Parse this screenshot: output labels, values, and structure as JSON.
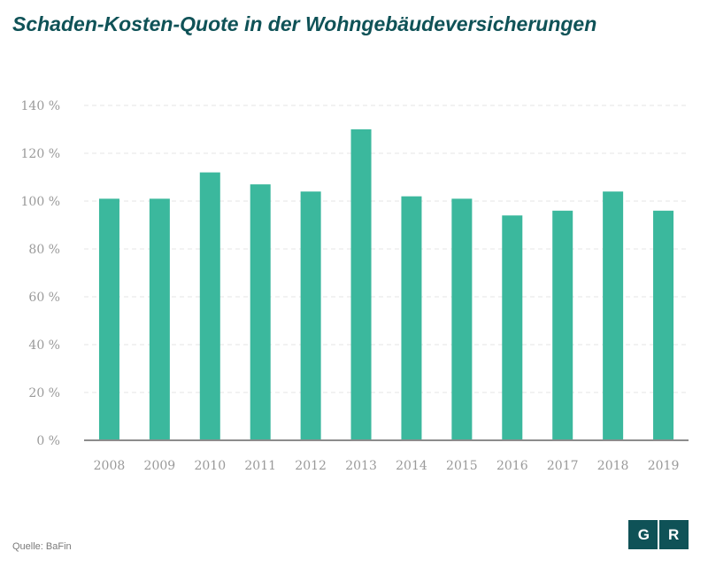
{
  "title": "Schaden-Kosten-Quote in der Wohngebäudeversicherungen",
  "source": "Quelle: BaFin",
  "logo": {
    "left_letter": "G",
    "right_letter": "R"
  },
  "colors": {
    "bar": "#3bb89d",
    "title": "#0f5257",
    "axis": "#8c8c8c",
    "grid": "#e4e4e4",
    "tick": "#9a9a9a"
  },
  "chart_data": {
    "type": "bar",
    "categories": [
      "2008",
      "2009",
      "2010",
      "2011",
      "2012",
      "2013",
      "2014",
      "2015",
      "2016",
      "2017",
      "2018",
      "2019"
    ],
    "values": [
      101,
      101,
      112,
      107,
      104,
      130,
      102,
      101,
      94,
      96,
      104,
      96
    ],
    "yticks": [
      "0 %",
      "20 %",
      "40 %",
      "60 %",
      "80 %",
      "100 %",
      "120 %",
      "140 %"
    ],
    "ylim": [
      0,
      140
    ],
    "grid": true
  }
}
